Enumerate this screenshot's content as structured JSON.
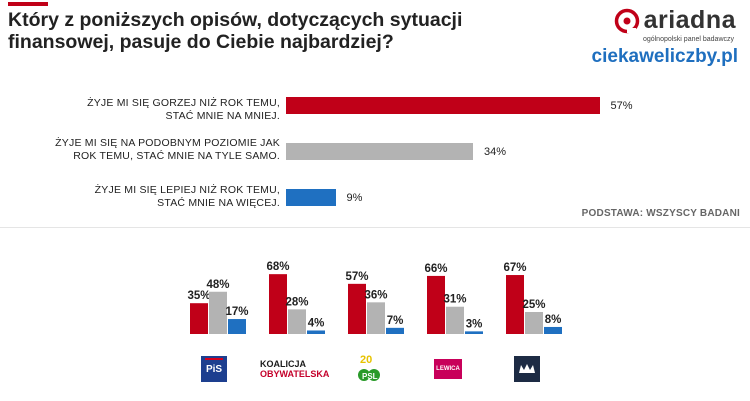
{
  "title": "Który z poniższych opisów, dotyczących sytuacji finansowej, pasuje do Ciebie najbardziej?",
  "brand": {
    "name": "ariadna",
    "tagline": "ogólnopolski panel badawczy",
    "site": "ciekaweliczby.pl"
  },
  "basis": "PODSTAWA: WSZYSCY BADANI",
  "colors": {
    "worse": "#c00018",
    "same": "#b3b3b3",
    "better": "#1f70c1",
    "accent": "#c00018",
    "site": "#1f6fbf"
  },
  "chart_data": [
    {
      "type": "bar",
      "orientation": "horizontal",
      "categories": [
        "ŻYJE MI SIĘ GORZEJ NIŻ ROK TEMU, STAĆ MNIE NA MNIEJ.",
        "ŻYJE MI SIĘ NA PODOBNYM POZIOMIE JAK ROK TEMU, STAĆ MNIE NA TYLE SAMO.",
        "ŻYJE MI SIĘ LEPIEJ NIŻ ROK TEMU, STAĆ MNIE NA WIĘCEJ."
      ],
      "category_lines": [
        [
          "ŻYJE MI SIĘ GORZEJ NIŻ ROK TEMU,",
          "STAĆ MNIE NA MNIEJ."
        ],
        [
          "ŻYJE MI SIĘ NA PODOBNYM POZIOMIE JAK",
          "ROK TEMU, STAĆ MNIE NA TYLE SAMO."
        ],
        [
          "ŻYJE MI SIĘ LEPIEJ NIŻ ROK TEMU,",
          "STAĆ MNIE NA WIĘCEJ."
        ]
      ],
      "values": [
        57,
        34,
        9
      ],
      "labels": [
        "57%",
        "34%",
        "9%"
      ],
      "unit": "%"
    },
    {
      "type": "bar",
      "orientation": "vertical",
      "categories": [
        "PiS",
        "Koalicja Obywatelska",
        "PSL",
        "Lewica",
        "Konfederacja"
      ],
      "series": [
        {
          "values": [
            35,
            68,
            57,
            66,
            67
          ],
          "labels": [
            "35%",
            "68%",
            "57%",
            "66%",
            "67%"
          ]
        },
        {
          "values": [
            48,
            28,
            36,
            31,
            25
          ],
          "labels": [
            "48%",
            "28%",
            "36%",
            "31%",
            "25%"
          ]
        },
        {
          "values": [
            17,
            4,
            7,
            3,
            8
          ],
          "labels": [
            "17%",
            "4%",
            "7%",
            "3%",
            "8%"
          ]
        }
      ],
      "unit": "%"
    }
  ],
  "party_logos": {
    "pis": "PiS",
    "ko_line1": "KOALICJA",
    "ko_line2": "OBYWATELSKA",
    "psl_number": "20",
    "psl_name": "PSL",
    "lewica": "LEWICA"
  }
}
